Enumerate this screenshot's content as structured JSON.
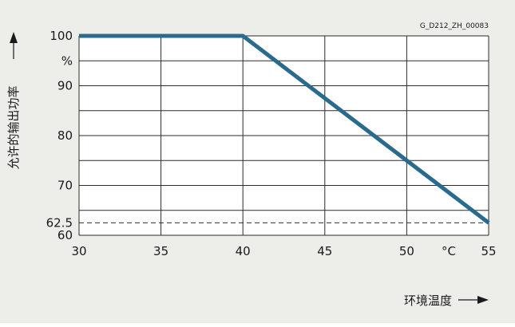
{
  "chart_data": {
    "type": "line",
    "figure_code": "G_D212_ZH_00083",
    "ylabel": "允许的输出功率",
    "y_unit": "%",
    "xlabel": "环境温度",
    "x_unit": "°C",
    "xlim": [
      30,
      55
    ],
    "ylim": [
      60,
      100
    ],
    "x_ticks": [
      30,
      35,
      40,
      45,
      50,
      55
    ],
    "x_tick_labels": [
      "30",
      "35",
      "40",
      "45",
      "50",
      "55"
    ],
    "y_ticks": [
      60,
      62.5,
      70,
      80,
      90,
      100
    ],
    "y_tick_labels": [
      "60",
      "62.5",
      "70",
      "80",
      "90",
      "100"
    ],
    "reference_line": {
      "y": 62.5,
      "style": "dashed"
    },
    "grid": true,
    "series": [
      {
        "x": [
          30,
          40,
          55
        ],
        "y": [
          100,
          100,
          62.5
        ],
        "color": "#2a6a8c"
      }
    ],
    "colors": {
      "background": "#ededea",
      "plot_background": "#ffffff",
      "line": "#2a6a8c",
      "grid": "#2b2b2b"
    }
  }
}
